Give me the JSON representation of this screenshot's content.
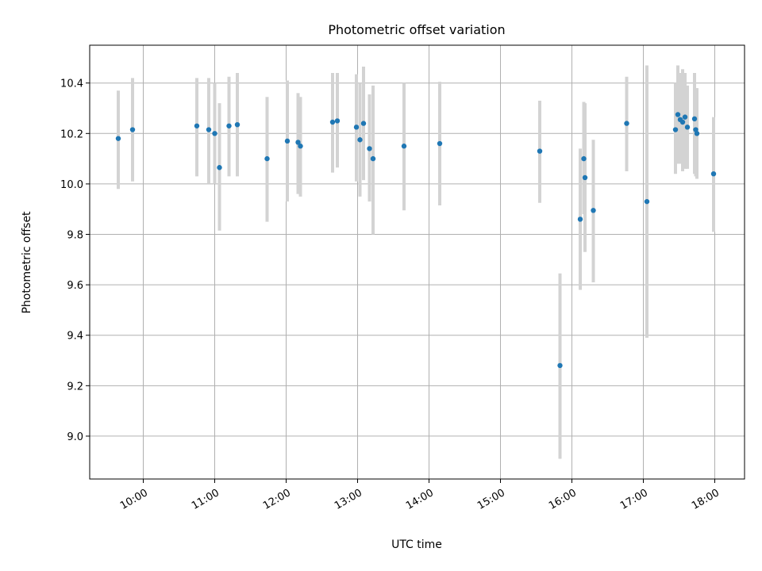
{
  "chart_data": {
    "type": "scatter",
    "title": "Photometric offset variation",
    "xlabel": "UTC time",
    "ylabel": "Photometric offset",
    "x_ticks": [
      "10:00",
      "11:00",
      "12:00",
      "13:00",
      "14:00",
      "15:00",
      "16:00",
      "17:00",
      "18:00"
    ],
    "y_ticks": [
      "9.0",
      "9.2",
      "9.4",
      "9.6",
      "9.8",
      "10.0",
      "10.2",
      "10.4"
    ],
    "xlim": [
      "09:15",
      "18:25"
    ],
    "ylim": [
      8.83,
      10.55
    ],
    "grid": true,
    "colors": {
      "point": "#1f77b4",
      "errorbar": "#d3d3d3"
    },
    "points": [
      {
        "t": "09:39",
        "y": 10.18,
        "lo": 9.98,
        "hi": 10.37
      },
      {
        "t": "09:51",
        "y": 10.215,
        "lo": 10.01,
        "hi": 10.42
      },
      {
        "t": "10:45",
        "y": 10.23,
        "lo": 10.03,
        "hi": 10.42
      },
      {
        "t": "10:55",
        "y": 10.215,
        "lo": 10.0,
        "hi": 10.42
      },
      {
        "t": "11:00",
        "y": 10.2,
        "lo": 10.0,
        "hi": 10.4
      },
      {
        "t": "11:04",
        "y": 10.065,
        "lo": 9.815,
        "hi": 10.32
      },
      {
        "t": "11:12",
        "y": 10.23,
        "lo": 10.03,
        "hi": 10.425
      },
      {
        "t": "11:19",
        "y": 10.235,
        "lo": 10.03,
        "hi": 10.44
      },
      {
        "t": "11:44",
        "y": 10.1,
        "lo": 9.85,
        "hi": 10.345
      },
      {
        "t": "12:01",
        "y": 10.17,
        "lo": 9.93,
        "hi": 10.41
      },
      {
        "t": "12:10",
        "y": 10.165,
        "lo": 9.96,
        "hi": 10.36
      },
      {
        "t": "12:12",
        "y": 10.15,
        "lo": 9.95,
        "hi": 10.345
      },
      {
        "t": "12:39",
        "y": 10.245,
        "lo": 10.045,
        "hi": 10.44
      },
      {
        "t": "12:43",
        "y": 10.25,
        "lo": 10.065,
        "hi": 10.44
      },
      {
        "t": "12:59",
        "y": 10.225,
        "lo": 10.01,
        "hi": 10.435
      },
      {
        "t": "13:02",
        "y": 10.175,
        "lo": 9.95,
        "hi": 10.4
      },
      {
        "t": "13:05",
        "y": 10.24,
        "lo": 10.015,
        "hi": 10.465
      },
      {
        "t": "13:10",
        "y": 10.14,
        "lo": 9.93,
        "hi": 10.355
      },
      {
        "t": "13:13",
        "y": 10.1,
        "lo": 9.8,
        "hi": 10.39
      },
      {
        "t": "13:39",
        "y": 10.15,
        "lo": 9.895,
        "hi": 10.4
      },
      {
        "t": "14:09",
        "y": 10.16,
        "lo": 9.915,
        "hi": 10.405
      },
      {
        "t": "15:33",
        "y": 10.13,
        "lo": 9.925,
        "hi": 10.33
      },
      {
        "t": "15:50",
        "y": 9.28,
        "lo": 8.91,
        "hi": 9.645
      },
      {
        "t": "16:07",
        "y": 9.86,
        "lo": 9.58,
        "hi": 10.14
      },
      {
        "t": "16:10",
        "y": 10.1,
        "lo": 9.88,
        "hi": 10.325
      },
      {
        "t": "16:11",
        "y": 10.025,
        "lo": 9.73,
        "hi": 10.32
      },
      {
        "t": "16:18",
        "y": 9.895,
        "lo": 9.61,
        "hi": 10.175
      },
      {
        "t": "16:46",
        "y": 10.24,
        "lo": 10.05,
        "hi": 10.425
      },
      {
        "t": "17:03",
        "y": 9.93,
        "lo": 9.39,
        "hi": 10.47
      },
      {
        "t": "17:27",
        "y": 10.215,
        "lo": 10.04,
        "hi": 10.4
      },
      {
        "t": "17:29",
        "y": 10.275,
        "lo": 10.08,
        "hi": 10.47
      },
      {
        "t": "17:31",
        "y": 10.255,
        "lo": 10.08,
        "hi": 10.44
      },
      {
        "t": "17:33",
        "y": 10.245,
        "lo": 10.05,
        "hi": 10.455
      },
      {
        "t": "17:35",
        "y": 10.265,
        "lo": 10.06,
        "hi": 10.44
      },
      {
        "t": "17:37",
        "y": 10.225,
        "lo": 10.06,
        "hi": 10.39
      },
      {
        "t": "17:43",
        "y": 10.258,
        "lo": 10.04,
        "hi": 10.44
      },
      {
        "t": "17:44",
        "y": 10.215,
        "lo": 10.03,
        "hi": 10.38
      },
      {
        "t": "17:45",
        "y": 10.2,
        "lo": 10.02,
        "hi": 10.38
      },
      {
        "t": "17:59",
        "y": 10.04,
        "lo": 9.81,
        "hi": 10.265
      }
    ]
  }
}
